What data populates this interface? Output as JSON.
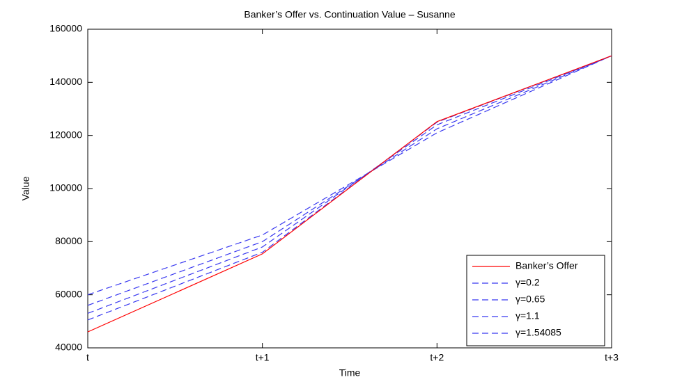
{
  "chart_data": {
    "type": "line",
    "title": "Banker’s Offer vs. Continuation Value – Susanne",
    "x_label": "Time",
    "y_label": "Value",
    "categories": [
      "t",
      "t+1",
      "t+2",
      "t+3"
    ],
    "series": [
      {
        "name": "Banker’s Offer",
        "color": "#ff0000",
        "dash": false,
        "values": [
          46000,
          75400,
          125200,
          150000
        ]
      },
      {
        "name": "γ=0.2",
        "color": "#3838f0",
        "dash": true,
        "values": [
          60000,
          82500,
          121000,
          150000
        ]
      },
      {
        "name": "γ=0.65",
        "color": "#3838f0",
        "dash": true,
        "values": [
          56000,
          80000,
          122500,
          150000
        ]
      },
      {
        "name": "γ=1.1",
        "color": "#3838f0",
        "dash": true,
        "values": [
          53000,
          78000,
          124000,
          150000
        ]
      },
      {
        "name": "γ=1.54085",
        "color": "#3838f0",
        "dash": true,
        "values": [
          50500,
          76000,
          125000,
          150000
        ]
      }
    ],
    "ylim": [
      40000,
      160000
    ],
    "yticks": [
      40000,
      60000,
      80000,
      100000,
      120000,
      140000,
      160000
    ],
    "legend": "lower right",
    "grid": false
  }
}
